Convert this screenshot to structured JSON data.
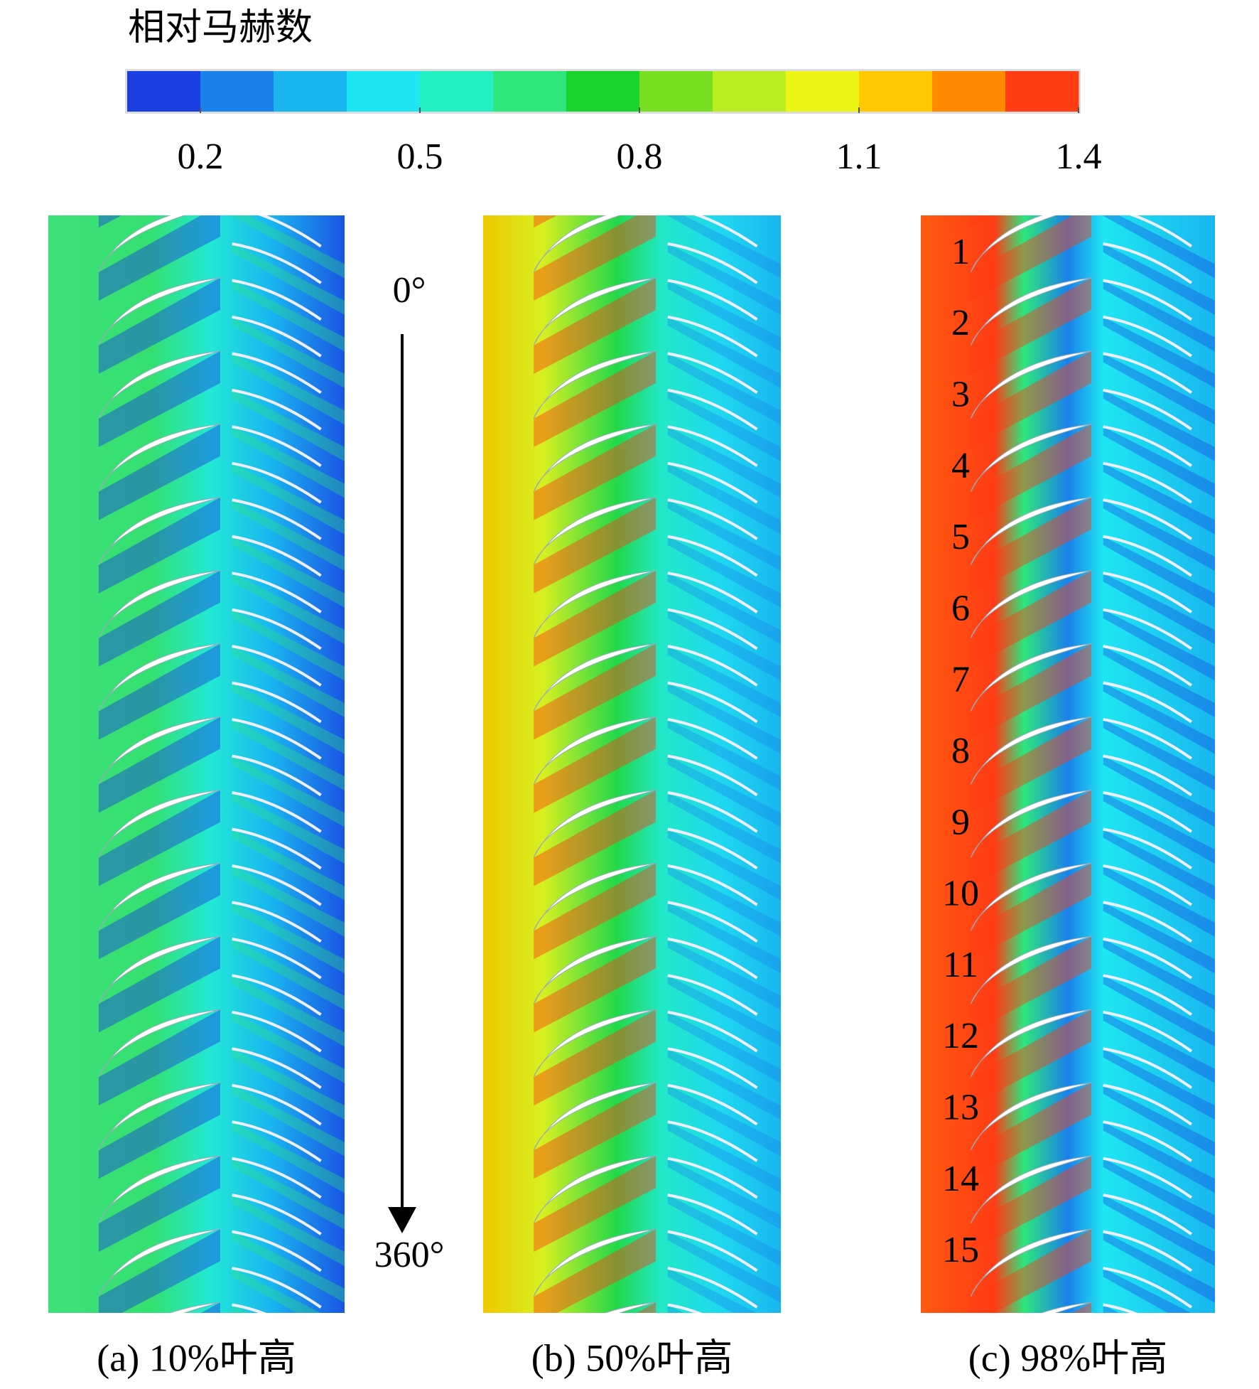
{
  "chart_data": {
    "type": "contour",
    "colorbar": {
      "title": "相对马赫数",
      "clim": [
        0.1,
        1.4
      ],
      "ticks": [
        0.2,
        0.5,
        0.8,
        1.1,
        1.4
      ],
      "colors": [
        "#1a3fe0",
        "#1a80ea",
        "#19b6ef",
        "#1fe6f2",
        "#22f0c2",
        "#2ee67c",
        "#18d42c",
        "#7ade22",
        "#baee22",
        "#ecf516",
        "#ffc800",
        "#ff8a00",
        "#ff3c14"
      ]
    },
    "panels": [
      {
        "label": "(a) 10%叶高"
      },
      {
        "label": "(b) 50%叶高"
      },
      {
        "label": "(c) 98%叶高"
      }
    ],
    "annotations": {
      "start": "0°",
      "end": "360°"
    },
    "blade_numbers": [
      "1",
      "2",
      "3",
      "4",
      "5",
      "6",
      "7",
      "8",
      "9",
      "10",
      "11",
      "12",
      "13",
      "14",
      "15"
    ]
  }
}
